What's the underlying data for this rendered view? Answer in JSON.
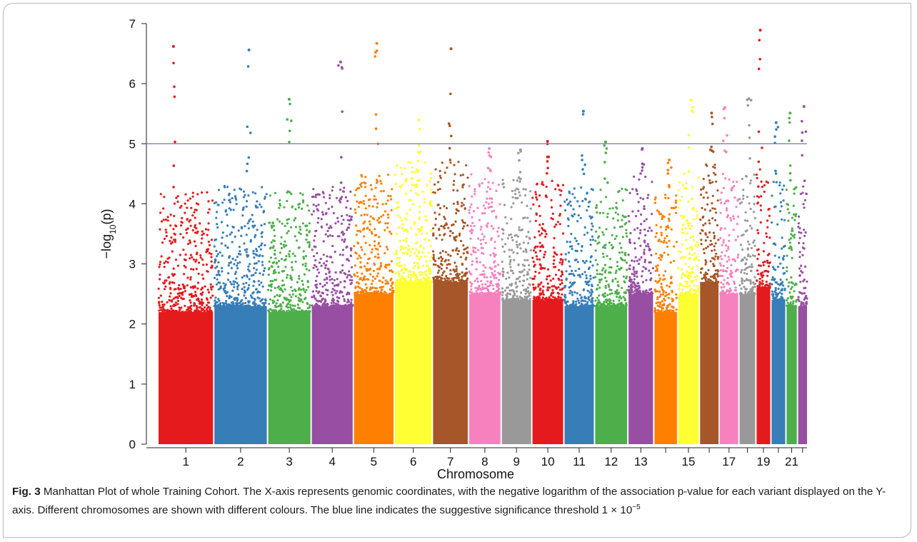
{
  "chart_data": {
    "type": "scatter",
    "title": "",
    "xlabel": "Chromosome",
    "ylabel_main": "−log",
    "ylabel_sub": "10",
    "ylabel_tail": "(p)",
    "ylim": [
      0,
      7
    ],
    "yticks": [
      "0",
      "1",
      "2",
      "3",
      "4",
      "5",
      "6",
      "7"
    ],
    "threshold": {
      "value": 5,
      "color": "#7b7fc4"
    },
    "grid": false,
    "legend": "none",
    "chromosomes": [
      {
        "chr": "1",
        "label": "1",
        "color": "#e41a1c",
        "baseline": 3.1,
        "peak": 6.62
      },
      {
        "chr": "2",
        "label": "2",
        "color": "#377eb8",
        "baseline": 3.2,
        "peak": 6.56
      },
      {
        "chr": "3",
        "label": "3",
        "color": "#4daf4a",
        "baseline": 3.1,
        "peak": 5.74
      },
      {
        "chr": "4",
        "label": "4",
        "color": "#984ea3",
        "baseline": 3.2,
        "peak": 6.36
      },
      {
        "chr": "5",
        "label": "5",
        "color": "#ff7f00",
        "baseline": 3.4,
        "peak": 6.67
      },
      {
        "chr": "6",
        "label": "6",
        "color": "#ffff33",
        "baseline": 3.6,
        "peak": 5.4
      },
      {
        "chr": "7",
        "label": "7",
        "color": "#a65628",
        "baseline": 3.6,
        "peak": 6.58
      },
      {
        "chr": "8",
        "label": "8",
        "color": "#f781bf",
        "baseline": 3.4,
        "peak": 4.92
      },
      {
        "chr": "9",
        "label": "9",
        "color": "#999999",
        "baseline": 3.3,
        "peak": 4.9
      },
      {
        "chr": "10",
        "label": "10",
        "color": "#e41a1c",
        "baseline": 3.3,
        "peak": 5.04
      },
      {
        "chr": "11",
        "label": "11",
        "color": "#377eb8",
        "baseline": 3.2,
        "peak": 5.54
      },
      {
        "chr": "12",
        "label": "12",
        "color": "#4daf4a",
        "baseline": 3.2,
        "peak": 5.03
      },
      {
        "chr": "13",
        "label": "13",
        "color": "#984ea3",
        "baseline": 3.4,
        "peak": 4.92
      },
      {
        "chr": "14",
        "label": "",
        "color": "#ff7f00",
        "baseline": 3.1,
        "peak": 4.73
      },
      {
        "chr": "15",
        "label": "15",
        "color": "#ffff33",
        "baseline": 3.4,
        "peak": 5.73
      },
      {
        "chr": "16",
        "label": "",
        "color": "#a65628",
        "baseline": 3.6,
        "peak": 5.51
      },
      {
        "chr": "17",
        "label": "17",
        "color": "#f781bf",
        "baseline": 3.4,
        "peak": 5.6
      },
      {
        "chr": "18",
        "label": "",
        "color": "#999999",
        "baseline": 3.4,
        "peak": 5.75
      },
      {
        "chr": "19",
        "label": "19",
        "color": "#e41a1c",
        "baseline": 3.5,
        "peak": 6.89
      },
      {
        "chr": "20",
        "label": "",
        "color": "#377eb8",
        "baseline": 3.3,
        "peak": 5.35
      },
      {
        "chr": "21",
        "label": "21",
        "color": "#4daf4a",
        "baseline": 3.2,
        "peak": 5.51
      },
      {
        "chr": "22",
        "label": "",
        "color": "#984ea3",
        "baseline": 3.2,
        "peak": 5.62
      }
    ]
  },
  "caption": {
    "label": "Fig. 3",
    "text": "Manhattan Plot of whole Training Cohort. The X-axis represents genomic coordinates, with the negative logarithm of the association p-value for each variant displayed on the Y-axis. Different chromosomes are shown with different colours. The blue line indicates the suggestive significance threshold 1 × 10",
    "exponent": "−5"
  }
}
